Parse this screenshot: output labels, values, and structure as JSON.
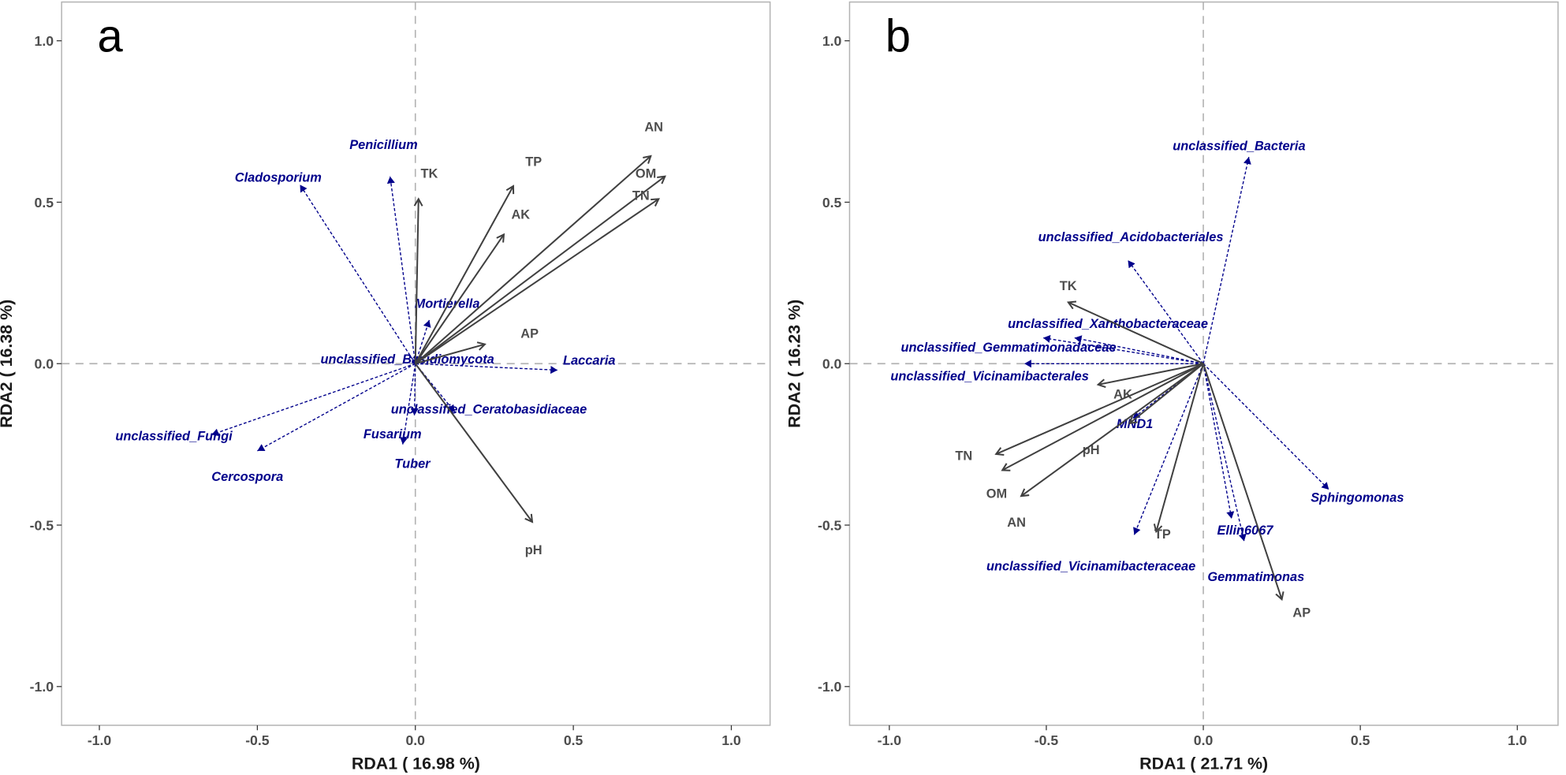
{
  "chart_data": [
    {
      "type": "scatter",
      "subtype": "rda-biplot",
      "panel_label": "a",
      "xlabel": "RDA1  ( 16.98 %)",
      "ylabel": "RDA2  ( 16.38 %)",
      "xlim": [
        -1.12,
        1.12
      ],
      "ylim": [
        -1.12,
        1.12
      ],
      "xticks": [
        -1.0,
        -0.5,
        0.0,
        0.5,
        1.0
      ],
      "yticks": [
        -1.0,
        -0.5,
        0.0,
        0.5,
        1.0
      ],
      "xtick_labels": [
        "-1.0",
        "-0.5",
        "0.0",
        "0.5",
        "1.0"
      ],
      "ytick_labels": [
        "-1.0",
        "-0.5",
        "0.0",
        "0.5",
        "1.0"
      ],
      "grid": false,
      "reference_lines": "dashed at x=0 and y=0",
      "env_color": "#404040",
      "species_color": "#00008b",
      "env_arrows": [
        {
          "name": "AN",
          "x": 0.745,
          "y": 0.643
        },
        {
          "name": "OM",
          "x": 0.79,
          "y": 0.58
        },
        {
          "name": "TN",
          "x": 0.77,
          "y": 0.51
        },
        {
          "name": "TP",
          "x": 0.31,
          "y": 0.55
        },
        {
          "name": "AK",
          "x": 0.28,
          "y": 0.4
        },
        {
          "name": "TK",
          "x": 0.01,
          "y": 0.51
        },
        {
          "name": "AP",
          "x": 0.22,
          "y": 0.06
        },
        {
          "name": "pH",
          "x": 0.37,
          "y": -0.49
        }
      ],
      "species_arrows": [
        {
          "name": "Cladosporium",
          "x": -0.365,
          "y": 0.554
        },
        {
          "name": "Penicillium",
          "x": -0.08,
          "y": 0.58
        },
        {
          "name": "Mortierella",
          "x": 0.044,
          "y": 0.135
        },
        {
          "name": "unclassified_Basidiomycota",
          "x": 0.005,
          "y": 0.02
        },
        {
          "name": "Laccaria",
          "x": 0.45,
          "y": -0.02
        },
        {
          "name": "unclassified_Ceratobasidiaceae",
          "x": 0.125,
          "y": -0.15
        },
        {
          "name": "Fusarium",
          "x": -0.04,
          "y": -0.25
        },
        {
          "name": "Tuber",
          "x": -0.003,
          "y": -0.16
        },
        {
          "name": "unclassified_Fungi",
          "x": -0.645,
          "y": -0.22
        },
        {
          "name": "Cercospora",
          "x": -0.5,
          "y": -0.27
        }
      ]
    },
    {
      "type": "scatter",
      "subtype": "rda-biplot",
      "panel_label": "b",
      "xlabel": "RDA1  ( 21.71 %)",
      "ylabel": "RDA2  ( 16.23 %)",
      "xlim": [
        -1.12,
        1.12
      ],
      "ylim": [
        -1.12,
        1.12
      ],
      "xticks": [
        -1.0,
        -0.5,
        0.0,
        0.5,
        1.0
      ],
      "yticks": [
        -1.0,
        -0.5,
        0.0,
        0.5,
        1.0
      ],
      "xtick_labels": [
        "-1.0",
        "-0.5",
        "0.0",
        "0.5",
        "1.0"
      ],
      "ytick_labels": [
        "-1.0",
        "-0.5",
        "0.0",
        "0.5",
        "1.0"
      ],
      "grid": false,
      "reference_lines": "dashed at x=0 and y=0",
      "env_color": "#404040",
      "species_color": "#00008b",
      "env_arrows": [
        {
          "name": "TK",
          "x": -0.43,
          "y": 0.19
        },
        {
          "name": "AK",
          "x": -0.335,
          "y": -0.065
        },
        {
          "name": "pH",
          "x": -0.235,
          "y": -0.185
        },
        {
          "name": "TN",
          "x": -0.66,
          "y": -0.28
        },
        {
          "name": "OM",
          "x": -0.64,
          "y": -0.33
        },
        {
          "name": "AN",
          "x": -0.58,
          "y": -0.41
        },
        {
          "name": "TP",
          "x": -0.15,
          "y": -0.52
        },
        {
          "name": "AP",
          "x": 0.25,
          "y": -0.73
        }
      ],
      "species_arrows": [
        {
          "name": "unclassified_Bacteria",
          "x": 0.145,
          "y": 0.64
        },
        {
          "name": "unclassified_Acidobacteriales",
          "x": -0.24,
          "y": 0.32
        },
        {
          "name": "unclassified_Xanthobacteraceae",
          "x": -0.41,
          "y": 0.08
        },
        {
          "name": "unclassified_Gemmatimonadaceae",
          "x": -0.51,
          "y": 0.08
        },
        {
          "name": "unclassified_Vicinamibacterales",
          "x": -0.57,
          "y": 0.0
        },
        {
          "name": "MND1",
          "x": -0.225,
          "y": -0.17
        },
        {
          "name": "unclassified_Vicinamibacteraceae",
          "x": -0.22,
          "y": -0.53
        },
        {
          "name": "Ellin6067",
          "x": 0.09,
          "y": -0.48
        },
        {
          "name": "Gemmatimonas",
          "x": 0.13,
          "y": -0.55
        },
        {
          "name": "Sphingomonas",
          "x": 0.4,
          "y": -0.39
        }
      ]
    }
  ]
}
